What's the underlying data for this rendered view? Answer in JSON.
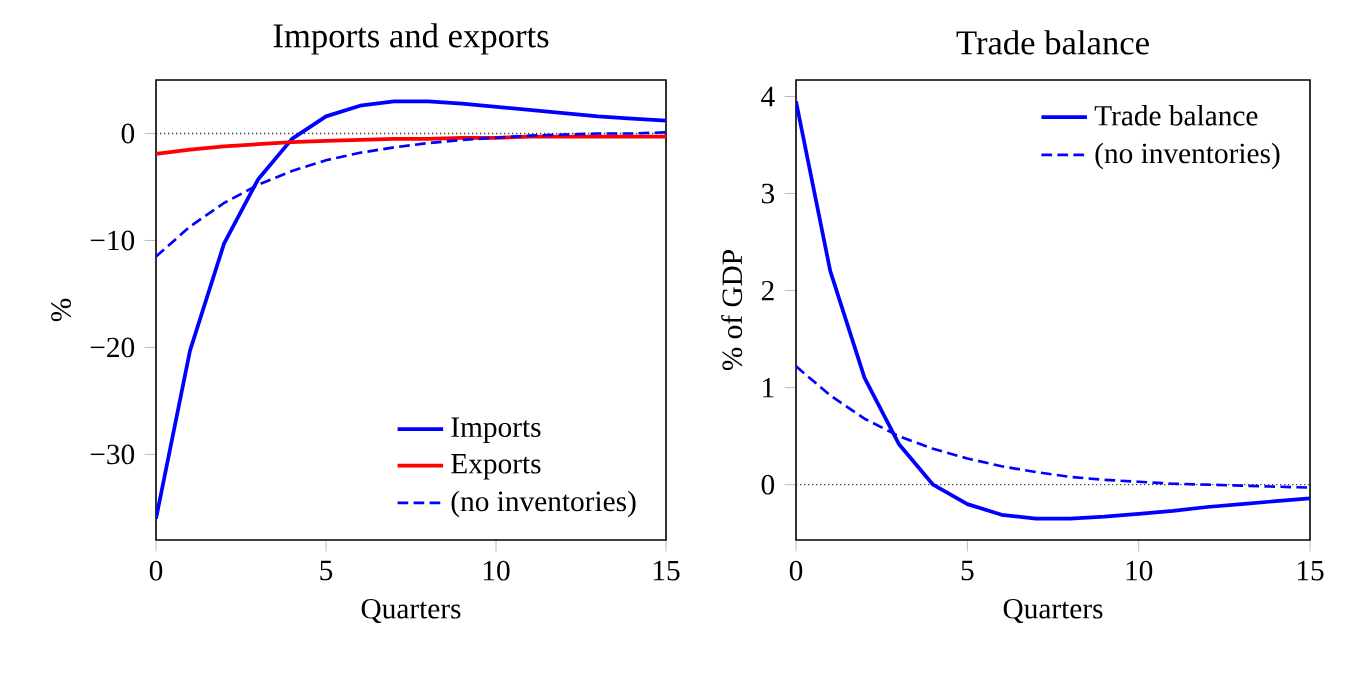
{
  "chart_data": [
    {
      "type": "line",
      "title": "Imports and exports",
      "xlabel": "Quarters",
      "ylabel": "%",
      "x": [
        0,
        1,
        2,
        3,
        4,
        5,
        6,
        7,
        8,
        9,
        10,
        11,
        12,
        13,
        14,
        15
      ],
      "series": [
        {
          "name": "Imports",
          "color": "#0000ff",
          "line_style": "solid",
          "values": [
            -36,
            -20.3,
            -10.3,
            -4.3,
            -0.5,
            1.6,
            2.6,
            3.0,
            3.0,
            2.8,
            2.5,
            2.2,
            1.9,
            1.6,
            1.4,
            1.2
          ]
        },
        {
          "name": "Exports",
          "color": "#ff0000",
          "line_style": "solid",
          "values": [
            -1.9,
            -1.5,
            -1.2,
            -1.0,
            -0.8,
            -0.7,
            -0.6,
            -0.5,
            -0.5,
            -0.4,
            -0.4,
            -0.3,
            -0.3,
            -0.3,
            -0.3,
            -0.3
          ]
        },
        {
          "name": "(no inventories)",
          "color": "#0000ff",
          "line_style": "dashed",
          "values": [
            -11.5,
            -8.7,
            -6.5,
            -4.8,
            -3.5,
            -2.5,
            -1.8,
            -1.3,
            -0.9,
            -0.6,
            -0.4,
            -0.2,
            -0.1,
            0,
            0,
            0.1
          ]
        }
      ],
      "xlim": [
        0,
        15
      ],
      "xticks": [
        0,
        5,
        10,
        15
      ],
      "ylim": [
        -38,
        5
      ],
      "yticks": [
        {
          "value": -30,
          "label": "−30"
        },
        {
          "value": -20,
          "label": "−20"
        },
        {
          "value": -10,
          "label": "−10"
        },
        0
      ],
      "ref_lines": [
        {
          "axis": "y",
          "value": 0,
          "color": "#444444",
          "line_style": "dotted"
        }
      ],
      "legend": "bottom right",
      "grid": false,
      "marker": "none"
    },
    {
      "type": "line",
      "title": "Trade balance",
      "xlabel": "Quarters",
      "ylabel": "% of GDP",
      "x": [
        0,
        1,
        2,
        3,
        4,
        5,
        6,
        7,
        8,
        9,
        10,
        11,
        12,
        13,
        14,
        15
      ],
      "series": [
        {
          "name": "Trade balance",
          "color": "#0000ff",
          "line_style": "solid",
          "values": [
            3.95,
            2.2,
            1.1,
            0.42,
            0.0,
            -0.2,
            -0.31,
            -0.35,
            -0.35,
            -0.33,
            -0.3,
            -0.27,
            -0.23,
            -0.2,
            -0.17,
            -0.14
          ]
        },
        {
          "name": "(no inventories)",
          "color": "#0000ff",
          "line_style": "dashed",
          "values": [
            1.22,
            0.92,
            0.68,
            0.5,
            0.37,
            0.27,
            0.19,
            0.13,
            0.08,
            0.05,
            0.03,
            0.01,
            0,
            -0.01,
            -0.02,
            -0.03
          ]
        }
      ],
      "xlim": [
        0,
        15
      ],
      "xticks": [
        0,
        5,
        10,
        15
      ],
      "ylim": [
        -0.57,
        4.17
      ],
      "yticks": [
        0,
        1,
        2,
        3,
        4
      ],
      "ref_lines": [
        {
          "axis": "y",
          "value": 0,
          "color": "#444444",
          "line_style": "dotted"
        }
      ],
      "legend": "top right",
      "grid": false,
      "marker": "none"
    }
  ]
}
